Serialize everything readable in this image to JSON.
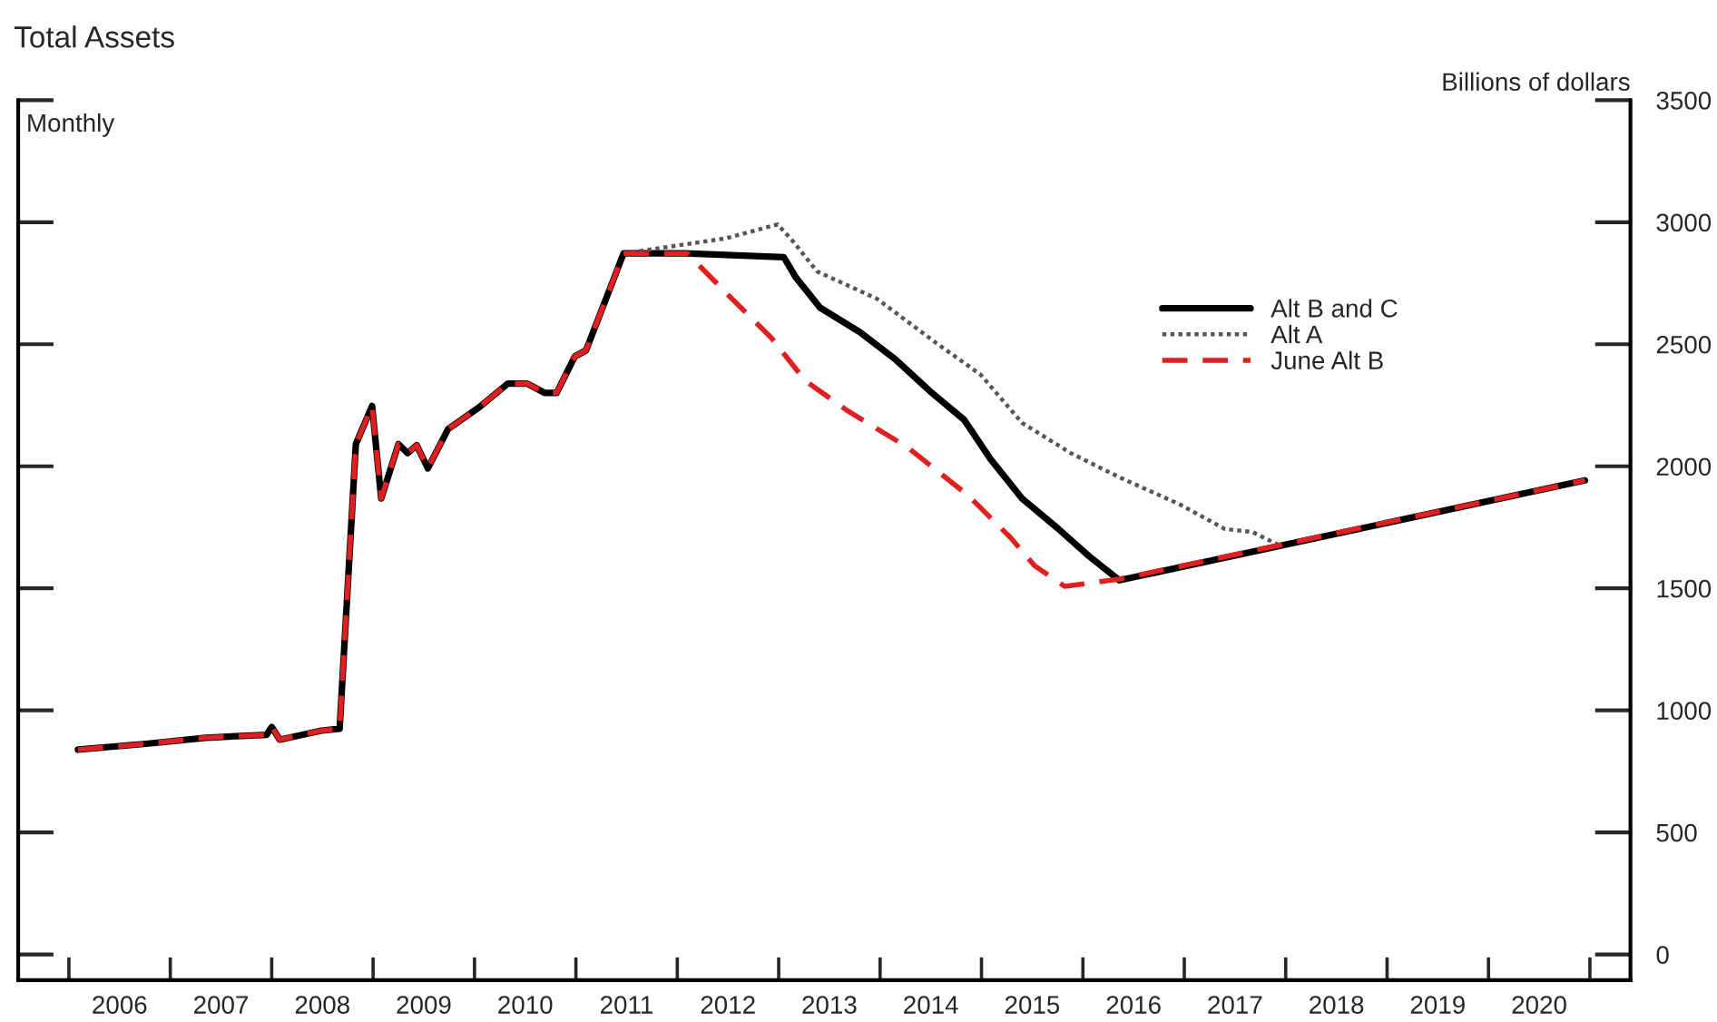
{
  "chart_data": {
    "type": "line",
    "title": "Total Assets",
    "ylabel": "Billions of dollars",
    "annotations": [
      "Monthly"
    ],
    "xlim": [
      2005.5,
      2021.4
    ],
    "ylim": [
      -105,
      3500
    ],
    "xticks": [
      {
        "value": 2006,
        "label": null
      },
      {
        "value": 2006.5,
        "label": "2006"
      },
      {
        "value": 2007,
        "label": null
      },
      {
        "value": 2007.5,
        "label": "2007"
      },
      {
        "value": 2008,
        "label": null
      },
      {
        "value": 2008.5,
        "label": "2008"
      },
      {
        "value": 2009,
        "label": null
      },
      {
        "value": 2009.5,
        "label": "2009"
      },
      {
        "value": 2010,
        "label": null
      },
      {
        "value": 2010.5,
        "label": "2010"
      },
      {
        "value": 2011,
        "label": null
      },
      {
        "value": 2011.5,
        "label": "2011"
      },
      {
        "value": 2012,
        "label": null
      },
      {
        "value": 2012.5,
        "label": "2012"
      },
      {
        "value": 2013,
        "label": null
      },
      {
        "value": 2013.5,
        "label": "2013"
      },
      {
        "value": 2014,
        "label": null
      },
      {
        "value": 2014.5,
        "label": "2014"
      },
      {
        "value": 2015,
        "label": null
      },
      {
        "value": 2015.5,
        "label": "2015"
      },
      {
        "value": 2016,
        "label": null
      },
      {
        "value": 2016.5,
        "label": "2016"
      },
      {
        "value": 2017,
        "label": null
      },
      {
        "value": 2017.5,
        "label": "2017"
      },
      {
        "value": 2018,
        "label": null
      },
      {
        "value": 2018.5,
        "label": "2018"
      },
      {
        "value": 2019,
        "label": null
      },
      {
        "value": 2019.5,
        "label": "2019"
      },
      {
        "value": 2020,
        "label": null
      },
      {
        "value": 2020.5,
        "label": "2020"
      },
      {
        "value": 2021,
        "label": null
      }
    ],
    "yticks": [
      0,
      500,
      1000,
      1500,
      2000,
      2500,
      3000,
      3500
    ],
    "grid": false,
    "legend": "top right",
    "marker": "none",
    "series": [
      {
        "name": "Alt B and C",
        "color": "#000000",
        "line_style": "solid",
        "x": [
          2006.09,
          2006.76,
          2007.35,
          2007.95,
          2008.0,
          2008.08,
          2008.49,
          2008.67,
          2008.83,
          2008.99,
          2009.08,
          2009.25,
          2009.34,
          2009.43,
          2009.54,
          2009.74,
          2010.04,
          2010.33,
          2010.52,
          2010.69,
          2010.81,
          2010.99,
          2011.1,
          2011.47,
          2012.1,
          2013.05,
          2013.17,
          2013.41,
          2013.8,
          2014.15,
          2014.51,
          2014.83,
          2015.09,
          2015.4,
          2015.76,
          2016.06,
          2016.36,
          2020.95
        ],
        "values": [
          839,
          863,
          888,
          900,
          932,
          880,
          917,
          925,
          2091,
          2247,
          1868,
          2091,
          2054,
          2086,
          1992,
          2153,
          2240,
          2339,
          2339,
          2301,
          2301,
          2450,
          2475,
          2872,
          2872,
          2857,
          2773,
          2649,
          2550,
          2438,
          2301,
          2190,
          2029,
          1868,
          1743,
          1632,
          1533,
          1942
        ]
      },
      {
        "name": "Alt A",
        "color": "#555555",
        "line_style": "dotted",
        "x": [
          2011.47,
          2012.48,
          2012.99,
          2013.14,
          2013.38,
          2013.97,
          2014.57,
          2014.99,
          2015.4,
          2015.88,
          2016.36,
          2016.96,
          2017.4,
          2017.67,
          2017.94
        ],
        "values": [
          2872,
          2934,
          2991,
          2922,
          2798,
          2686,
          2500,
          2376,
          2178,
          2054,
          1955,
          1843,
          1743,
          1731,
          1676
        ]
      },
      {
        "name": "June Alt B",
        "color": "#e02020",
        "line_style": "dashed",
        "x": [
          2006.09,
          2006.76,
          2007.35,
          2007.95,
          2008.0,
          2008.08,
          2008.49,
          2008.67,
          2008.83,
          2008.99,
          2009.08,
          2009.25,
          2009.34,
          2009.43,
          2009.54,
          2009.74,
          2010.04,
          2010.33,
          2010.52,
          2010.69,
          2010.81,
          2010.99,
          2011.1,
          2011.47,
          2012.1,
          2012.48,
          2012.93,
          2013.26,
          2013.68,
          2014.27,
          2014.87,
          2015.29,
          2015.52,
          2015.82,
          2016.36,
          2020.95
        ],
        "values": [
          839,
          863,
          888,
          900,
          932,
          880,
          917,
          925,
          2091,
          2247,
          1868,
          2091,
          2054,
          2086,
          1992,
          2153,
          2240,
          2339,
          2339,
          2301,
          2301,
          2450,
          2475,
          2872,
          2872,
          2711,
          2525,
          2351,
          2227,
          2078,
          1880,
          1706,
          1594,
          1508,
          1538,
          1942
        ]
      }
    ]
  }
}
